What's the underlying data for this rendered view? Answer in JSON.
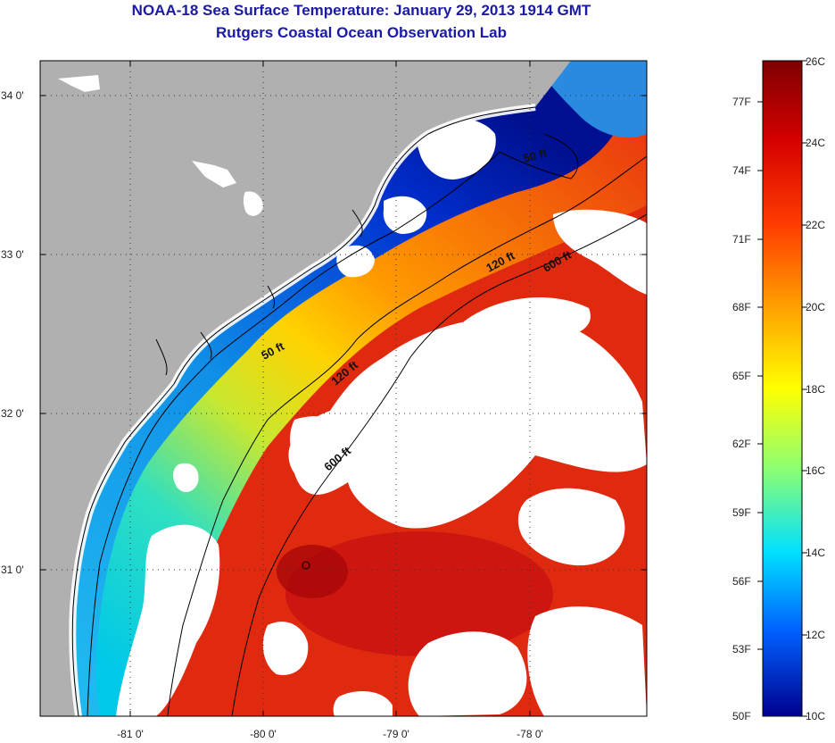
{
  "title": "NOAA-18 Sea Surface Temperature:  January 29, 2013 1914 GMT",
  "subtitle": "Rutgers Coastal Ocean Observation Lab",
  "lat_ticks": [
    "34 0'",
    "33 0'",
    "32 0'",
    "31 0'"
  ],
  "lon_ticks": [
    "-81 0'",
    "-80 0'",
    "-79 0'",
    "-78 0'"
  ],
  "contour_labels": [
    "50 ft",
    "120 ft",
    "600 ft",
    "50 ft",
    "120 ft",
    "600 ft"
  ],
  "colorbar": {
    "fahrenheit": [
      "77F",
      "74F",
      "71F",
      "68F",
      "65F",
      "62F",
      "59F",
      "56F",
      "53F",
      "50F"
    ],
    "celsius": [
      "26C",
      "24C",
      "22C",
      "20C",
      "18C",
      "16C",
      "14C",
      "12C",
      "10C"
    ]
  },
  "colors": {
    "land": "#b0b0b0",
    "cloud": "#ffffff",
    "title": "#1a1aa6"
  }
}
